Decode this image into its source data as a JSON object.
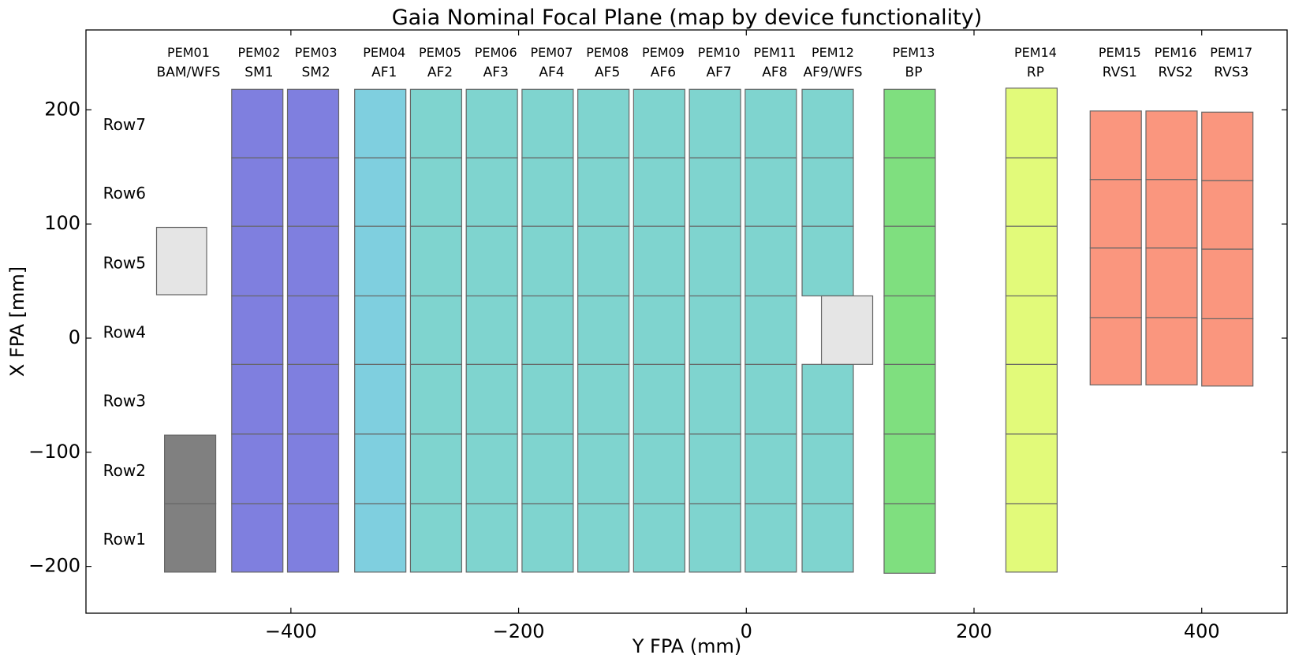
{
  "chart_data": {
    "type": "rect-map",
    "title": "Gaia Nominal Focal Plane (map by device functionality)",
    "xlabel": "Y FPA (mm)",
    "ylabel": "X FPA [mm]",
    "xlim": [
      -580,
      475
    ],
    "ylim": [
      -241,
      270
    ],
    "xticks": [
      -400,
      -200,
      0,
      200,
      400
    ],
    "yticks": [
      -200,
      -100,
      0,
      100,
      200
    ],
    "xtick_labels": [
      "−400",
      "−200",
      "0",
      "200",
      "400"
    ],
    "ytick_labels": [
      "−200",
      "−100",
      "0",
      "100",
      "200"
    ],
    "grid": false,
    "row_labels": [
      {
        "text": "Row7",
        "x": -565,
        "y": 186
      },
      {
        "text": "Row6",
        "x": -565,
        "y": 126
      },
      {
        "text": "Row5",
        "x": -565,
        "y": 65
      },
      {
        "text": "Row4",
        "x": -565,
        "y": 4
      },
      {
        "text": "Row3",
        "x": -565,
        "y": -56
      },
      {
        "text": "Row2",
        "x": -565,
        "y": -117
      },
      {
        "text": "Row1",
        "x": -565,
        "y": -177
      }
    ],
    "pem_labels": [
      {
        "pem": "PEM01",
        "device": "BAM/WFS",
        "x": -490
      },
      {
        "pem": "PEM02",
        "device": "SM1",
        "x": -428
      },
      {
        "pem": "PEM03",
        "device": "SM2",
        "x": -378
      },
      {
        "pem": "PEM04",
        "device": "AF1",
        "x": -318
      },
      {
        "pem": "PEM05",
        "device": "AF2",
        "x": -269
      },
      {
        "pem": "PEM06",
        "device": "AF3",
        "x": -220
      },
      {
        "pem": "PEM07",
        "device": "AF4",
        "x": -171
      },
      {
        "pem": "PEM08",
        "device": "AF5",
        "x": -122
      },
      {
        "pem": "PEM09",
        "device": "AF6",
        "x": -73
      },
      {
        "pem": "PEM10",
        "device": "AF7",
        "x": -24
      },
      {
        "pem": "PEM11",
        "device": "AF8",
        "x": 25
      },
      {
        "pem": "PEM12",
        "device": "AF9/WFS",
        "x": 76
      },
      {
        "pem": "PEM13",
        "device": "BP",
        "x": 147
      },
      {
        "pem": "PEM14",
        "device": "RP",
        "x": 254
      },
      {
        "pem": "PEM15",
        "device": "RVS1",
        "x": 328
      },
      {
        "pem": "PEM16",
        "device": "RVS2",
        "x": 377
      },
      {
        "pem": "PEM17",
        "device": "RVS3",
        "x": 426
      }
    ],
    "colors": {
      "SM": "#7f7fdf",
      "AF1": "#7fcfdf",
      "AF": "#7fd4cf",
      "BP": "#7fdf7f",
      "RP": "#e2fa7a",
      "RVS": "#fa967e",
      "BAM": "#808080",
      "WFS": "#e5e5e5",
      "edge": "#666666"
    },
    "columns": [
      {
        "name": "BAM",
        "x0": -511,
        "x1": -466,
        "color": "BAM",
        "cells": [
          [
            -205,
            -145
          ],
          [
            -145,
            -85
          ]
        ]
      },
      {
        "name": "WFS1",
        "x0": -518,
        "x1": -474,
        "color": "WFS",
        "cells": [
          [
            38,
            97
          ]
        ]
      },
      {
        "name": "SM1",
        "x0": -452,
        "x1": -407,
        "color": "SM",
        "cells": [
          [
            -205,
            -145
          ],
          [
            -145,
            -84
          ],
          [
            -84,
            -23
          ],
          [
            -23,
            37
          ],
          [
            37,
            98
          ],
          [
            98,
            158
          ],
          [
            158,
            218
          ]
        ]
      },
      {
        "name": "SM2",
        "x0": -403,
        "x1": -358,
        "color": "SM",
        "cells": [
          [
            -205,
            -145
          ],
          [
            -145,
            -84
          ],
          [
            -84,
            -23
          ],
          [
            -23,
            37
          ],
          [
            37,
            98
          ],
          [
            98,
            158
          ],
          [
            158,
            218
          ]
        ]
      },
      {
        "name": "AF1",
        "x0": -344,
        "x1": -299,
        "color": "AF1",
        "cells": [
          [
            -205,
            -145
          ],
          [
            -145,
            -84
          ],
          [
            -84,
            -23
          ],
          [
            -23,
            37
          ],
          [
            37,
            98
          ],
          [
            98,
            158
          ],
          [
            158,
            218
          ]
        ]
      },
      {
        "name": "AF2",
        "x0": -295,
        "x1": -250,
        "color": "AF",
        "cells": [
          [
            -205,
            -145
          ],
          [
            -145,
            -84
          ],
          [
            -84,
            -23
          ],
          [
            -23,
            37
          ],
          [
            37,
            98
          ],
          [
            98,
            158
          ],
          [
            158,
            218
          ]
        ]
      },
      {
        "name": "AF3",
        "x0": -246,
        "x1": -201,
        "color": "AF",
        "cells": [
          [
            -205,
            -145
          ],
          [
            -145,
            -84
          ],
          [
            -84,
            -23
          ],
          [
            -23,
            37
          ],
          [
            37,
            98
          ],
          [
            98,
            158
          ],
          [
            158,
            218
          ]
        ]
      },
      {
        "name": "AF4",
        "x0": -197,
        "x1": -152,
        "color": "AF",
        "cells": [
          [
            -205,
            -145
          ],
          [
            -145,
            -84
          ],
          [
            -84,
            -23
          ],
          [
            -23,
            37
          ],
          [
            37,
            98
          ],
          [
            98,
            158
          ],
          [
            158,
            218
          ]
        ]
      },
      {
        "name": "AF5",
        "x0": -148,
        "x1": -103,
        "color": "AF",
        "cells": [
          [
            -205,
            -145
          ],
          [
            -145,
            -84
          ],
          [
            -84,
            -23
          ],
          [
            -23,
            37
          ],
          [
            37,
            98
          ],
          [
            98,
            158
          ],
          [
            158,
            218
          ]
        ]
      },
      {
        "name": "AF6",
        "x0": -99,
        "x1": -54,
        "color": "AF",
        "cells": [
          [
            -205,
            -145
          ],
          [
            -145,
            -84
          ],
          [
            -84,
            -23
          ],
          [
            -23,
            37
          ],
          [
            37,
            98
          ],
          [
            98,
            158
          ],
          [
            158,
            218
          ]
        ]
      },
      {
        "name": "AF7",
        "x0": -50,
        "x1": -5,
        "color": "AF",
        "cells": [
          [
            -205,
            -145
          ],
          [
            -145,
            -84
          ],
          [
            -84,
            -23
          ],
          [
            -23,
            37
          ],
          [
            37,
            98
          ],
          [
            98,
            158
          ],
          [
            158,
            218
          ]
        ]
      },
      {
        "name": "AF8",
        "x0": -1,
        "x1": 44,
        "color": "AF",
        "cells": [
          [
            -205,
            -145
          ],
          [
            -145,
            -84
          ],
          [
            -84,
            -23
          ],
          [
            -23,
            37
          ],
          [
            37,
            98
          ],
          [
            98,
            158
          ],
          [
            158,
            218
          ]
        ]
      },
      {
        "name": "AF9",
        "x0": 49,
        "x1": 94,
        "color": "AF",
        "cells": [
          [
            -205,
            -145
          ],
          [
            -145,
            -84
          ],
          [
            -84,
            -23
          ],
          [
            37,
            98
          ],
          [
            98,
            158
          ],
          [
            158,
            218
          ]
        ]
      },
      {
        "name": "WFS2",
        "x0": 66,
        "x1": 111,
        "color": "WFS",
        "cells": [
          [
            -23,
            37
          ]
        ]
      },
      {
        "name": "BP",
        "x0": 121,
        "x1": 166,
        "color": "BP",
        "cells": [
          [
            -206,
            -145
          ],
          [
            -145,
            -84
          ],
          [
            -84,
            -23
          ],
          [
            -23,
            37
          ],
          [
            37,
            98
          ],
          [
            98,
            158
          ],
          [
            158,
            218
          ]
        ]
      },
      {
        "name": "RP",
        "x0": 228,
        "x1": 273,
        "color": "RP",
        "cells": [
          [
            -205,
            -145
          ],
          [
            -145,
            -84
          ],
          [
            -84,
            -23
          ],
          [
            -23,
            37
          ],
          [
            37,
            98
          ],
          [
            98,
            158
          ],
          [
            158,
            219
          ]
        ]
      },
      {
        "name": "RVS1",
        "x0": 302,
        "x1": 347,
        "color": "RVS",
        "cells": [
          [
            -41,
            18
          ],
          [
            18,
            79
          ],
          [
            79,
            139
          ],
          [
            139,
            199
          ]
        ]
      },
      {
        "name": "RVS2",
        "x0": 351,
        "x1": 396,
        "color": "RVS",
        "cells": [
          [
            -41,
            18
          ],
          [
            18,
            79
          ],
          [
            79,
            139
          ],
          [
            139,
            199
          ]
        ]
      },
      {
        "name": "RVS3",
        "x0": 400,
        "x1": 445,
        "color": "RVS",
        "cells": [
          [
            -42,
            17
          ],
          [
            17,
            78
          ],
          [
            78,
            138
          ],
          [
            138,
            198
          ]
        ]
      }
    ]
  }
}
